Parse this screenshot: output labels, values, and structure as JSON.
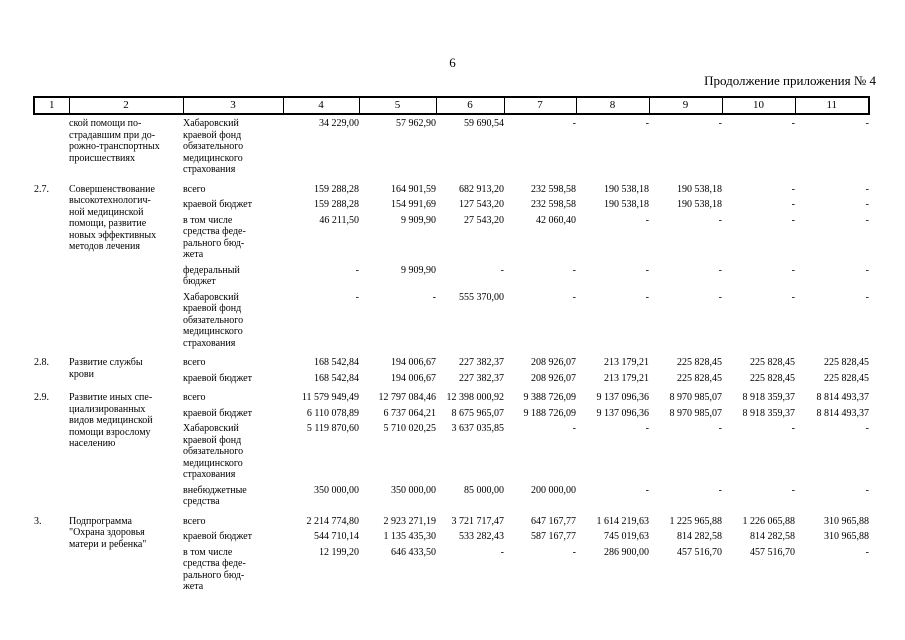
{
  "page": {
    "number": "6",
    "continuation_note": "Продолжение приложения № 4"
  },
  "table": {
    "column_numbers": [
      "1",
      "2",
      "3",
      "4",
      "5",
      "6",
      "7",
      "8",
      "9",
      "10",
      "11"
    ],
    "sections": [
      {
        "num": "",
        "title": "ской помощи по-\nстрадавшим при до-\nрожно-транспортных\nпроисшествиях",
        "rows": [
          {
            "label": "Хабаровский\nкраевой фонд\nобязательного\nмедицинского\nстрахования",
            "values": [
              "34 229,00",
              "57 962,90",
              "59 690,54",
              "-",
              "-",
              "-",
              "-",
              "-"
            ]
          }
        ]
      },
      {
        "num": "2.7.",
        "title": "Совершенствование\nвысокотехнологич-\nной медицинской\nпомощи, развитие\nновых эффективных\nметодов лечения",
        "rows": [
          {
            "label": "всего",
            "values": [
              "159 288,28",
              "164 901,59",
              "682 913,20",
              "232 598,58",
              "190 538,18",
              "190 538,18",
              "-",
              "-"
            ]
          },
          {
            "label": "краевой бюджет",
            "values": [
              "159 288,28",
              "154 991,69",
              "127 543,20",
              "232 598,58",
              "190 538,18",
              "190 538,18",
              "-",
              "-"
            ]
          },
          {
            "label": "в том числе\nсредства феде-\nрального бюд-\nжета",
            "values": [
              "46 211,50",
              "9 909,90",
              "27 543,20",
              "42 060,40",
              "-",
              "-",
              "-",
              "-"
            ]
          },
          {
            "label": "федеральный\nбюджет",
            "values": [
              "-",
              "9 909,90",
              "-",
              "-",
              "-",
              "-",
              "-",
              "-"
            ]
          },
          {
            "label": "Хабаровский\nкраевой фонд\nобязательного\nмедицинского\nстрахования",
            "values": [
              "-",
              "-",
              "555 370,00",
              "-",
              "-",
              "-",
              "-",
              "-"
            ]
          }
        ]
      },
      {
        "num": "2.8.",
        "title": "Развитие службы\nкрови",
        "rows": [
          {
            "label": "всего",
            "values": [
              "168 542,84",
              "194 006,67",
              "227 382,37",
              "208 926,07",
              "213 179,21",
              "225 828,45",
              "225 828,45",
              "225 828,45"
            ]
          },
          {
            "label": "краевой бюджет",
            "values": [
              "168 542,84",
              "194 006,67",
              "227 382,37",
              "208 926,07",
              "213 179,21",
              "225 828,45",
              "225 828,45",
              "225 828,45"
            ]
          }
        ]
      },
      {
        "num": "2.9.",
        "title": "Развитие иных спе-\nциализированных\nвидов медицинской\nпомощи взрослому\nнаселению",
        "rows": [
          {
            "label": "всего",
            "values": [
              "11 579 949,49",
              "12 797 084,46",
              "12 398 000,92",
              "9 388 726,09",
              "9 137 096,36",
              "8 970 985,07",
              "8 918 359,37",
              "8 814 493,37"
            ]
          },
          {
            "label": "краевой бюджет",
            "values": [
              "6 110 078,89",
              "6 737 064,21",
              "8 675 965,07",
              "9 188 726,09",
              "9 137 096,36",
              "8 970 985,07",
              "8 918 359,37",
              "8 814 493,37"
            ]
          },
          {
            "label": "Хабаровский\nкраевой фонд\nобязательного\nмедицинского\nстрахования",
            "values": [
              "5 119 870,60",
              "5 710 020,25",
              "3 637 035,85",
              "-",
              "-",
              "-",
              "-",
              "-"
            ]
          },
          {
            "label": "внебюджетные\nсредства",
            "values": [
              "350 000,00",
              "350 000,00",
              "85 000,00",
              "200 000,00",
              "-",
              "-",
              "-",
              "-"
            ]
          }
        ]
      },
      {
        "num": "3.",
        "title": "Подпрограмма\n\"Охрана здоровья\nматери и ребенка\"",
        "rows": [
          {
            "label": "всего",
            "values": [
              "2 214 774,80",
              "2 923 271,19",
              "3 721 717,47",
              "647 167,77",
              "1 614 219,63",
              "1 225 965,88",
              "1 226 065,88",
              "310 965,88"
            ]
          },
          {
            "label": "краевой бюджет",
            "values": [
              "544 710,14",
              "1 135 435,30",
              "533 282,43",
              "587 167,77",
              "745 019,63",
              "814 282,58",
              "814 282,58",
              "310 965,88"
            ]
          },
          {
            "label": "в том числе\nсредства феде-\nрального бюд-\nжета",
            "values": [
              "12 199,20",
              "646 433,50",
              "-",
              "-",
              "286 900,00",
              "457 516,70",
              "457 516,70",
              "-"
            ]
          }
        ]
      }
    ]
  }
}
